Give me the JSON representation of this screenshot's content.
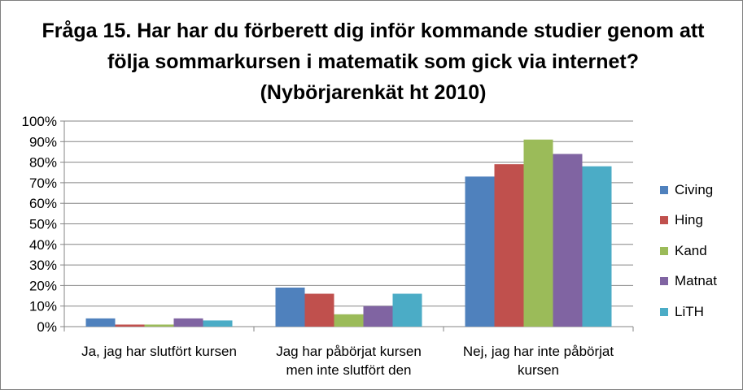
{
  "chart_data": {
    "type": "bar",
    "title": "Fråga 15. Har har du förberett dig inför kommande studier genom att följa sommarkursen i matematik som gick via internet? (Nybörjarenkät ht 2010)",
    "categories": [
      [
        "Ja, jag har slutfört kursen"
      ],
      [
        "Jag har påbörjat kursen",
        "men inte slutfört den"
      ],
      [
        "Nej, jag har inte påbörjat",
        "kursen"
      ]
    ],
    "series": [
      {
        "name": "Civing",
        "color": "#4f81bd",
        "values": [
          4,
          19,
          73
        ]
      },
      {
        "name": "Hing",
        "color": "#c0504d",
        "values": [
          1,
          16,
          79
        ]
      },
      {
        "name": "Kand",
        "color": "#9bbb59",
        "values": [
          1,
          6,
          91
        ]
      },
      {
        "name": "Matnat",
        "color": "#8064a2",
        "values": [
          4,
          10,
          84
        ]
      },
      {
        "name": "LiTH",
        "color": "#4bacc6",
        "values": [
          3,
          16,
          78
        ]
      }
    ],
    "ylim": [
      0,
      100
    ],
    "yticks": [
      "0%",
      "10%",
      "20%",
      "30%",
      "40%",
      "50%",
      "60%",
      "70%",
      "80%",
      "90%",
      "100%"
    ],
    "grid": true,
    "legend_position": "right"
  }
}
